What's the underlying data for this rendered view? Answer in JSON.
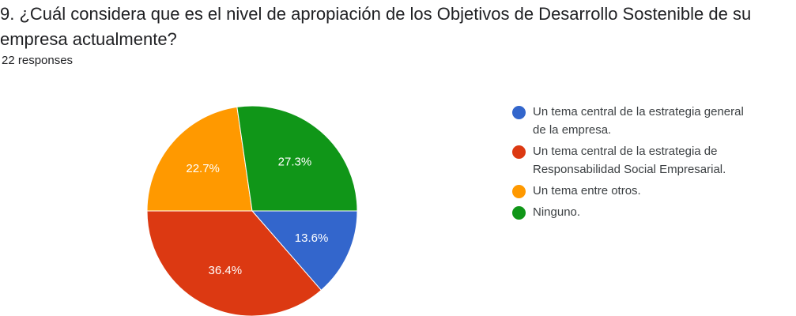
{
  "question": {
    "title_line1": "9. ¿Cuál considera que es el nivel de apropiación de los Objetivos de Desarrollo Sostenible de su",
    "title_line2": "empresa actualmente?",
    "responses": "22 responses"
  },
  "chart_data": {
    "type": "pie",
    "categories": [
      "Un tema central de la estrategia general de la empresa.",
      "Un tema central de la estrategia de Responsabilidad Social Empresarial.",
      "Un tema entre otros.",
      "Ninguno."
    ],
    "values": [
      13.6,
      36.4,
      22.7,
      27.3
    ],
    "labels": [
      "13.6%",
      "36.4%",
      "22.7%",
      "27.3%"
    ],
    "colors": [
      "#3366cc",
      "#dc3912",
      "#ff9900",
      "#109618"
    ],
    "legend_position": "right"
  },
  "legend": {
    "items": [
      {
        "line1": "Un tema central de la estrategia general",
        "line2": "de la empresa.",
        "color": "#3366cc"
      },
      {
        "line1": "Un tema central de la estrategia de",
        "line2": "Responsabilidad Social Empresarial.",
        "color": "#dc3912"
      },
      {
        "line1": "Un tema entre otros.",
        "line2": "",
        "color": "#ff9900"
      },
      {
        "line1": "Ninguno.",
        "line2": "",
        "color": "#109618"
      }
    ]
  }
}
